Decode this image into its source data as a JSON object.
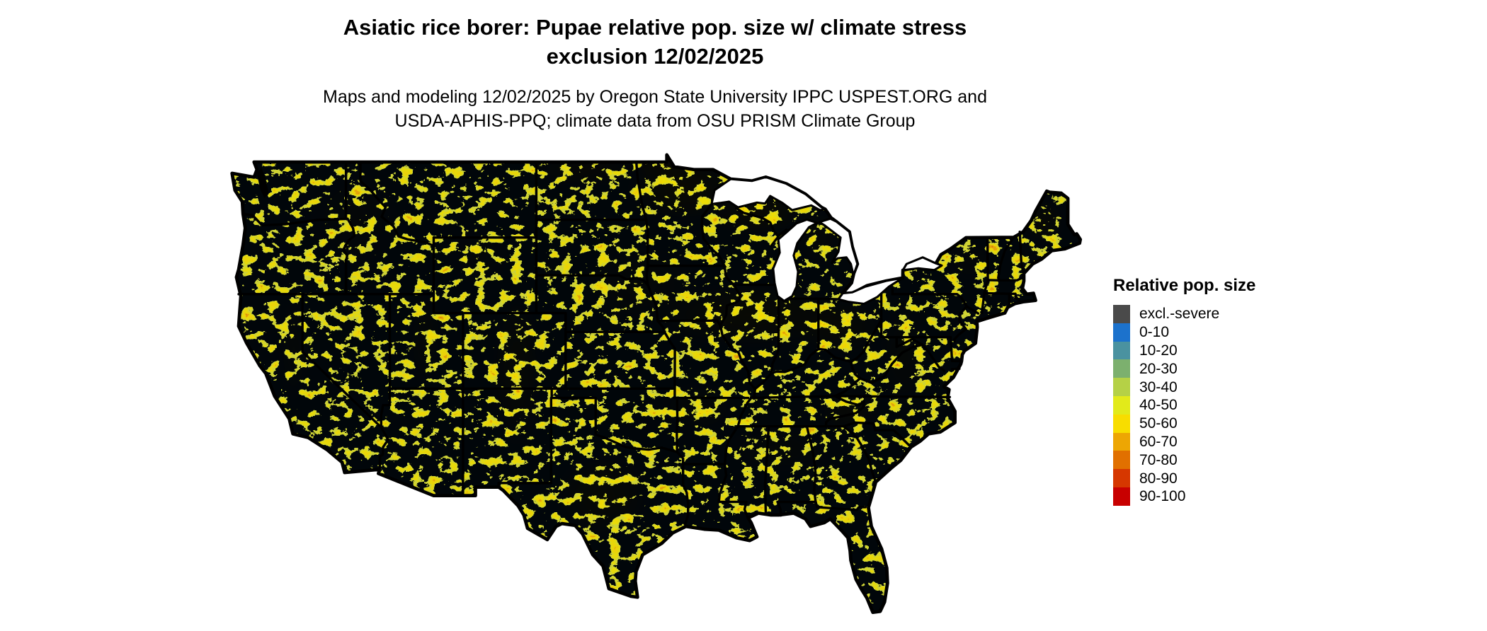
{
  "title": {
    "line1": "Asiatic rice borer: Pupae relative pop. size w/ climate stress",
    "line2": "exclusion 12/02/2025"
  },
  "subtitle": {
    "line1": "Maps and modeling 12/02/2025 by Oregon State University IPPC USPEST.ORG and",
    "line2": "USDA-APHIS-PPQ; climate data from OSU PRISM Climate Group"
  },
  "legend": {
    "title": "Relative pop. size",
    "items": [
      {
        "label": "excl.-severe",
        "color": "#4a4a4a"
      },
      {
        "label": "0-10",
        "color": "#1c72cc"
      },
      {
        "label": "10-20",
        "color": "#4a92a0"
      },
      {
        "label": "20-30",
        "color": "#7cb06e"
      },
      {
        "label": "30-40",
        "color": "#b5d146"
      },
      {
        "label": "40-50",
        "color": "#e2ea1a"
      },
      {
        "label": "50-60",
        "color": "#f8dd00"
      },
      {
        "label": "60-70",
        "color": "#eda603"
      },
      {
        "label": "70-80",
        "color": "#e17000"
      },
      {
        "label": "80-90",
        "color": "#d63700"
      },
      {
        "label": "90-100",
        "color": "#c80000"
      }
    ]
  },
  "map": {
    "region": "Contiguous United States",
    "base_color": "#1c72cc",
    "border_color": "#000000",
    "lake_color": "#ffffff",
    "background_color": "#ffffff"
  }
}
